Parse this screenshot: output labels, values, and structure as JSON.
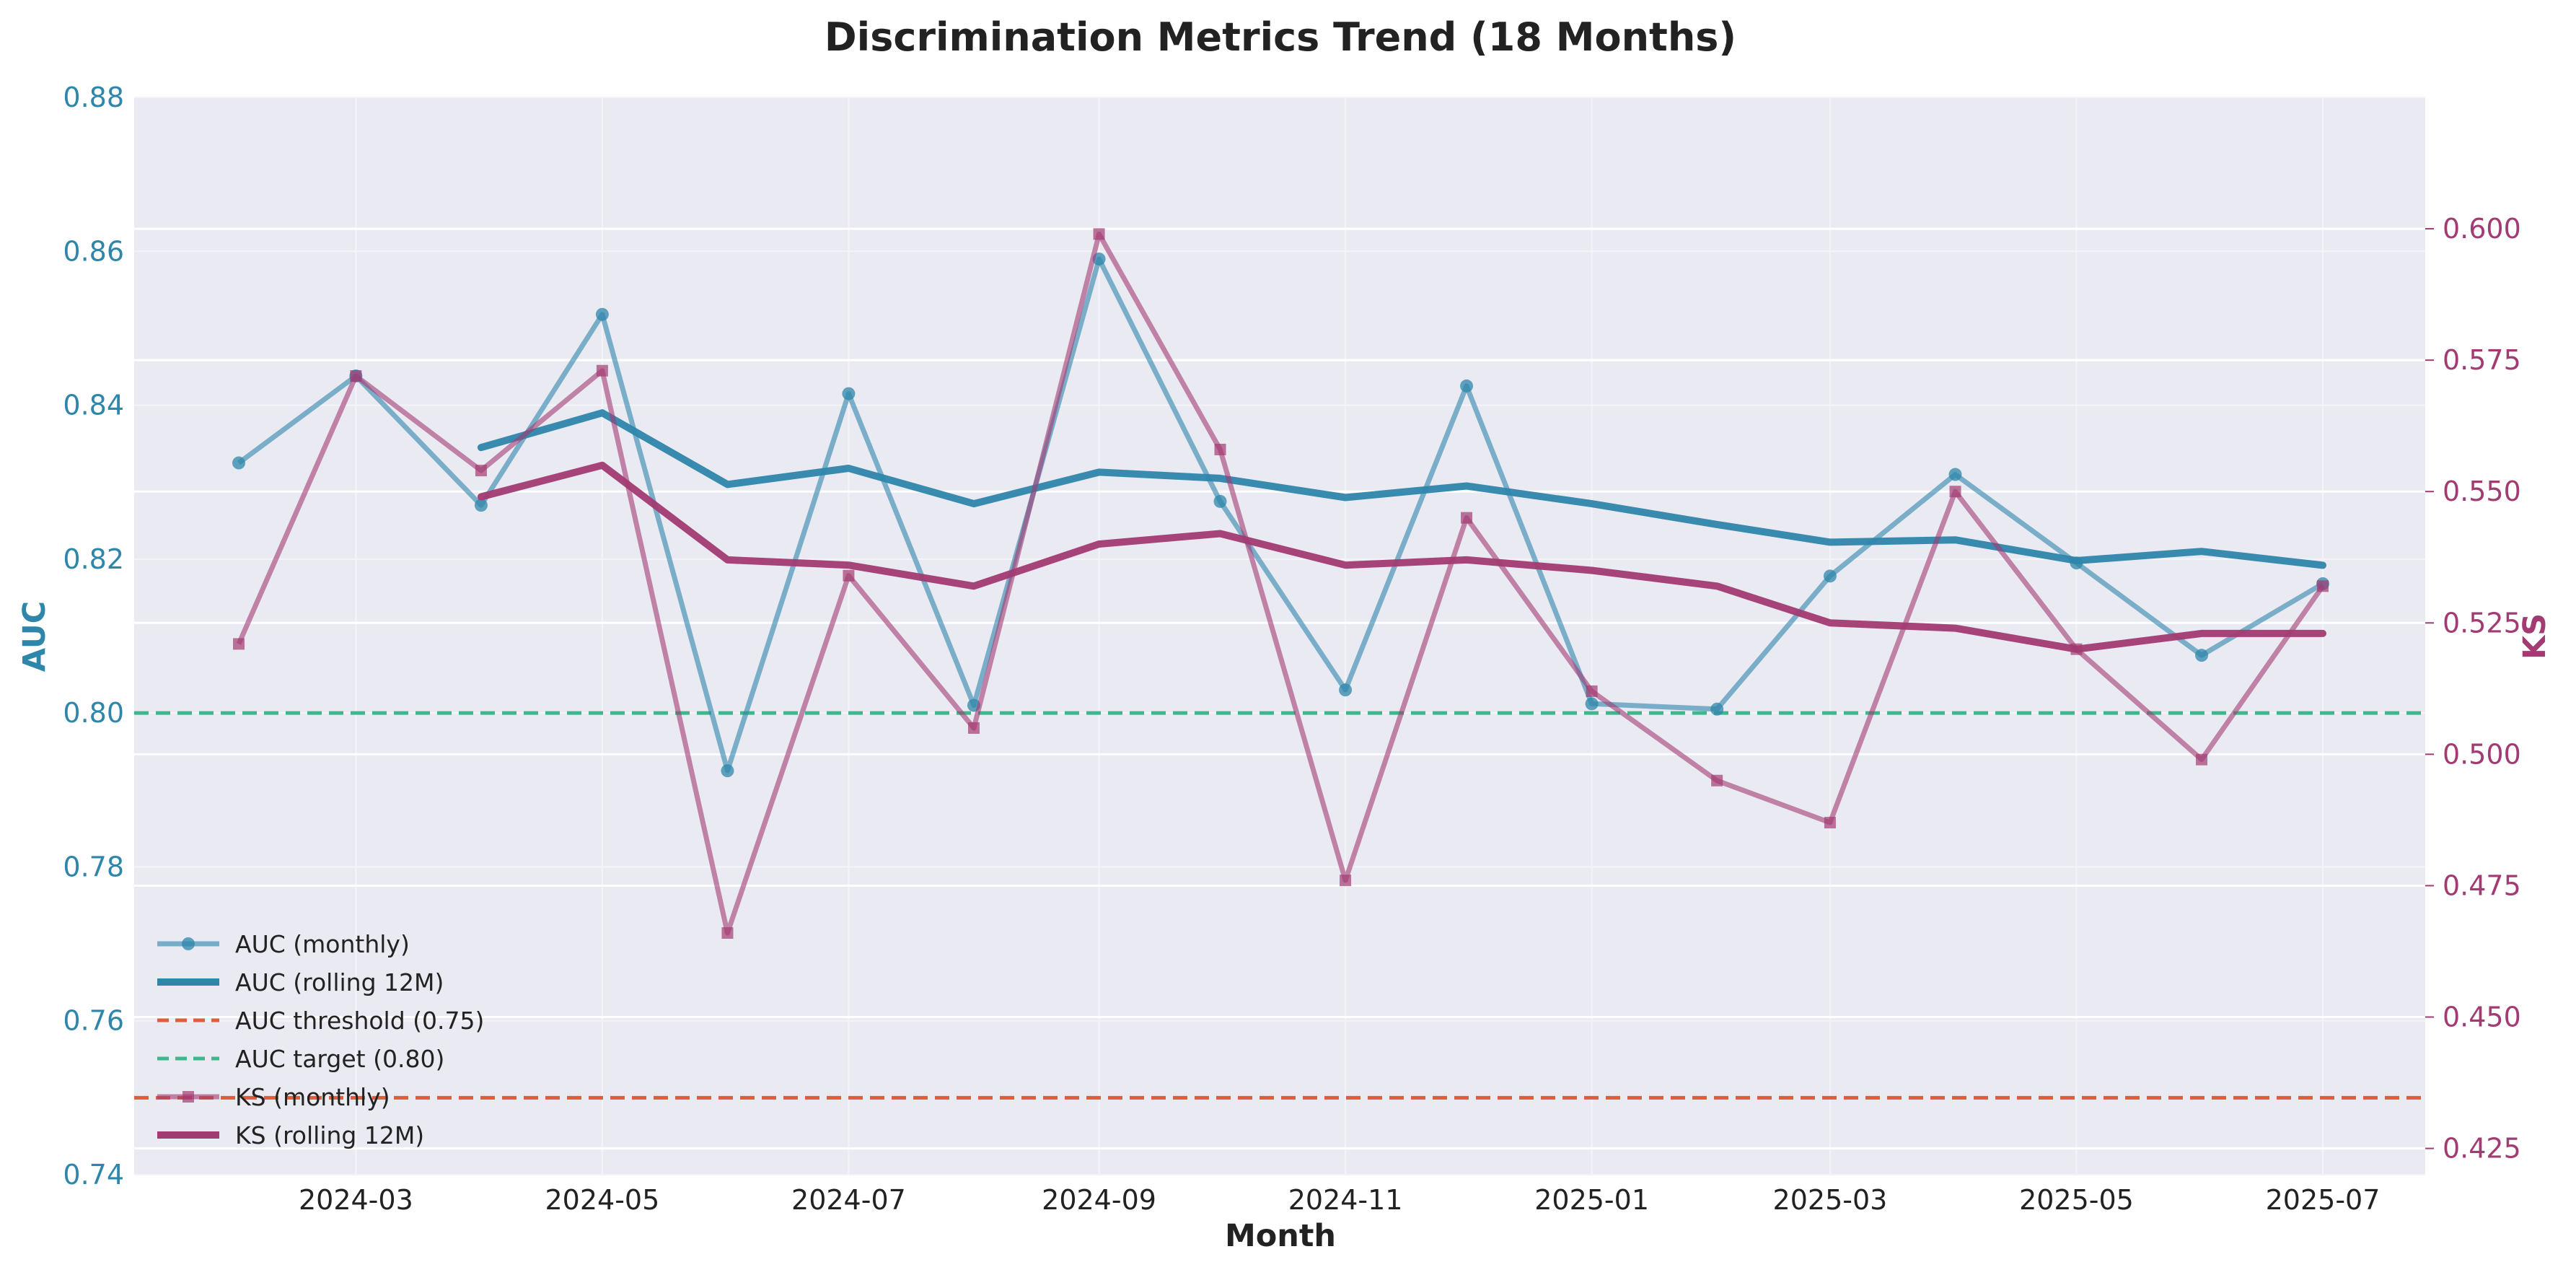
{
  "chart_data": {
    "type": "line",
    "title": "Discrimination Metrics Trend (18 Months)",
    "xlabel": "Month",
    "ylabel_left": "AUC",
    "ylabel_right": "KS",
    "x": [
      "2024-02",
      "2024-03",
      "2024-04",
      "2024-05",
      "2024-06",
      "2024-07",
      "2024-08",
      "2024-09",
      "2024-10",
      "2024-11",
      "2024-12",
      "2025-01",
      "2025-02",
      "2025-03",
      "2025-04",
      "2025-05",
      "2025-06",
      "2025-07"
    ],
    "x_ticks": [
      "2024-03",
      "2024-05",
      "2024-07",
      "2024-09",
      "2024-11",
      "2025-01",
      "2025-03",
      "2025-05",
      "2025-07"
    ],
    "ylim_left": [
      0.74,
      0.88
    ],
    "yticks_left": [
      "0.74",
      "0.76",
      "0.78",
      "0.80",
      "0.82",
      "0.84",
      "0.86",
      "0.88"
    ],
    "ylim_right": [
      0.42,
      0.625
    ],
    "yticks_right": [
      "0.425",
      "0.450",
      "0.475",
      "0.500",
      "0.525",
      "0.550",
      "0.575",
      "0.600"
    ],
    "grid": true,
    "legend_position": "lower-left",
    "series": [
      {
        "name": "AUC (monthly)",
        "axis": "left",
        "color": "#2e86ab",
        "style": "line-marker-circle",
        "values": [
          0.8325,
          0.8438,
          0.827,
          0.8518,
          0.7925,
          0.8415,
          0.801,
          0.859,
          0.8275,
          0.803,
          0.8425,
          0.8012,
          0.8005,
          0.8178,
          0.831,
          0.8195,
          0.8075,
          0.8168
        ]
      },
      {
        "name": "AUC (rolling 12M)",
        "axis": "left",
        "color": "#2e86ab",
        "style": "thick-line",
        "values": [
          null,
          null,
          0.8345,
          0.839,
          0.8297,
          0.8318,
          0.8272,
          0.8313,
          0.8305,
          0.828,
          0.8295,
          0.8272,
          0.8245,
          0.8222,
          0.8225,
          0.8198,
          0.821,
          0.8192
        ]
      },
      {
        "name": "AUC threshold (0.75)",
        "axis": "left",
        "color": "#e05c3a",
        "style": "dashed",
        "value": 0.75
      },
      {
        "name": "AUC target (0.80)",
        "axis": "left",
        "color": "#3fb68b",
        "style": "dashed",
        "value": 0.8
      },
      {
        "name": "KS (monthly)",
        "axis": "right",
        "color": "#a23b72",
        "style": "line-marker-square",
        "values": [
          0.521,
          0.572,
          0.554,
          0.573,
          0.466,
          0.534,
          0.505,
          0.599,
          0.558,
          0.476,
          0.545,
          0.512,
          0.495,
          0.487,
          0.55,
          0.52,
          0.499,
          0.532
        ]
      },
      {
        "name": "KS (rolling 12M)",
        "axis": "right",
        "color": "#a23b72",
        "style": "thick-line",
        "values": [
          null,
          null,
          0.549,
          0.555,
          0.537,
          0.536,
          0.532,
          0.54,
          0.542,
          0.536,
          0.537,
          0.535,
          0.532,
          0.525,
          0.524,
          0.52,
          0.523,
          0.523
        ]
      }
    ]
  }
}
